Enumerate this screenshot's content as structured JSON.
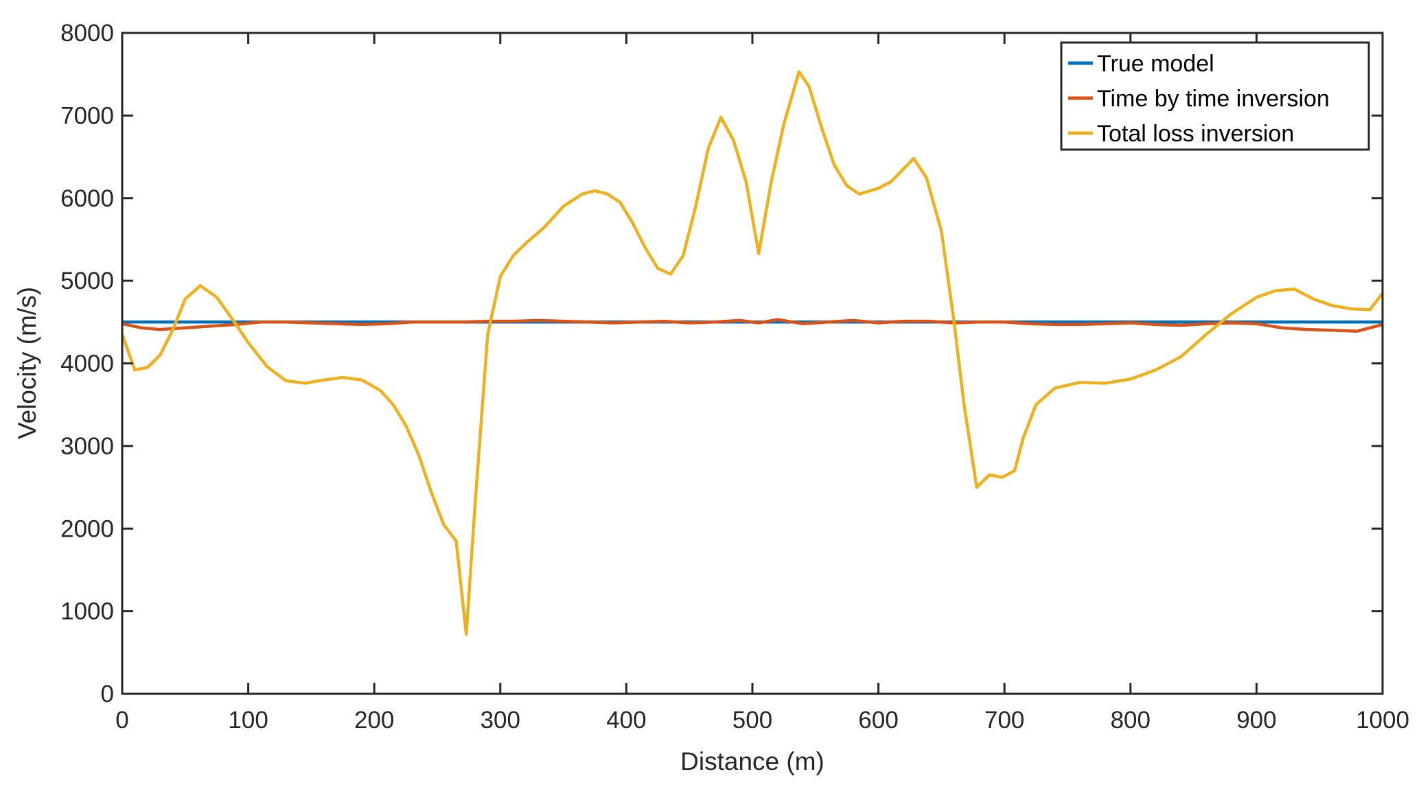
{
  "chart_data": {
    "type": "line",
    "title": "",
    "xlabel": "Distance (m)",
    "ylabel": "Velocity (m/s)",
    "xlim": [
      0,
      1000
    ],
    "ylim": [
      0,
      8000
    ],
    "xticks": [
      0,
      100,
      200,
      300,
      400,
      500,
      600,
      700,
      800,
      900,
      1000
    ],
    "yticks": [
      0,
      1000,
      2000,
      3000,
      4000,
      5000,
      6000,
      7000,
      8000
    ],
    "grid": false,
    "legend_position": "top-right",
    "series": [
      {
        "name": "True model",
        "color": "#0072bd",
        "x": [
          0,
          1000
        ],
        "y": [
          4500,
          4500
        ]
      },
      {
        "name": "Time by time inversion",
        "color": "#d95319",
        "x": [
          0,
          15,
          30,
          50,
          70,
          90,
          110,
          130,
          150,
          170,
          190,
          210,
          230,
          250,
          270,
          290,
          310,
          330,
          350,
          370,
          390,
          410,
          430,
          450,
          470,
          490,
          505,
          520,
          540,
          560,
          580,
          600,
          620,
          640,
          660,
          680,
          700,
          720,
          740,
          760,
          780,
          800,
          820,
          840,
          860,
          880,
          900,
          920,
          940,
          960,
          980,
          1000
        ],
        "y": [
          4480,
          4430,
          4410,
          4430,
          4450,
          4470,
          4500,
          4500,
          4490,
          4480,
          4470,
          4480,
          4500,
          4500,
          4500,
          4510,
          4510,
          4520,
          4510,
          4500,
          4490,
          4500,
          4510,
          4490,
          4500,
          4520,
          4490,
          4530,
          4480,
          4500,
          4520,
          4490,
          4510,
          4510,
          4490,
          4500,
          4500,
          4480,
          4470,
          4470,
          4480,
          4490,
          4470,
          4460,
          4480,
          4490,
          4480,
          4430,
          4410,
          4400,
          4390,
          4470
        ]
      },
      {
        "name": "Total loss inversion",
        "color": "#edb120",
        "x": [
          0,
          10,
          20,
          30,
          40,
          50,
          62,
          75,
          90,
          100,
          115,
          130,
          145,
          160,
          175,
          190,
          205,
          215,
          225,
          235,
          245,
          255,
          265,
          273,
          280,
          290,
          300,
          310,
          320,
          335,
          350,
          365,
          375,
          385,
          395,
          405,
          415,
          425,
          435,
          445,
          455,
          465,
          475,
          485,
          495,
          505,
          515,
          525,
          537,
          545,
          555,
          565,
          575,
          585,
          600,
          610,
          628,
          638,
          650,
          660,
          668,
          678,
          688,
          698,
          708,
          715,
          725,
          740,
          760,
          780,
          800,
          820,
          840,
          860,
          880,
          900,
          915,
          930,
          945,
          960,
          975,
          990,
          1000
        ],
        "y": [
          4350,
          3920,
          3950,
          4100,
          4400,
          4780,
          4940,
          4800,
          4480,
          4250,
          3960,
          3790,
          3760,
          3800,
          3830,
          3800,
          3670,
          3500,
          3250,
          2900,
          2450,
          2050,
          1850,
          720,
          2300,
          4350,
          5050,
          5300,
          5450,
          5650,
          5900,
          6050,
          6090,
          6050,
          5950,
          5700,
          5400,
          5150,
          5080,
          5300,
          5900,
          6600,
          6980,
          6700,
          6200,
          5330,
          6200,
          6900,
          7530,
          7350,
          6850,
          6400,
          6150,
          6050,
          6120,
          6200,
          6480,
          6250,
          5600,
          4500,
          3500,
          2500,
          2650,
          2620,
          2700,
          3100,
          3500,
          3700,
          3770,
          3760,
          3810,
          3920,
          4080,
          4350,
          4600,
          4800,
          4880,
          4900,
          4780,
          4700,
          4660,
          4650,
          4850
        ]
      }
    ]
  }
}
